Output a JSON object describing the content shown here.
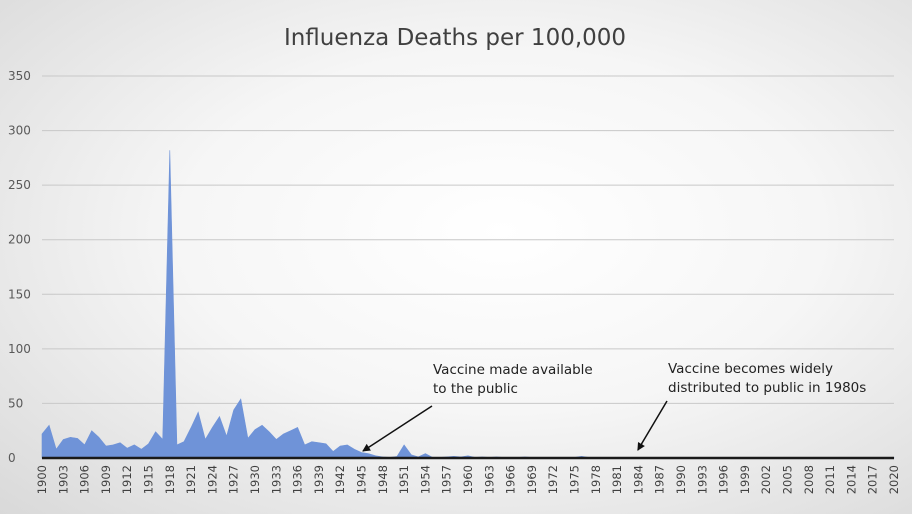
{
  "chart_data": {
    "type": "area",
    "title": "Influenza Deaths per 100,000",
    "xlabel": "",
    "ylabel": "",
    "xlim": [
      1900,
      2020
    ],
    "ylim": [
      0,
      350
    ],
    "y_ticks": [
      0,
      50,
      100,
      150,
      200,
      250,
      300,
      350
    ],
    "x_tick_labels": [
      "1900",
      "1903",
      "1906",
      "1909",
      "1912",
      "1915",
      "1918",
      "1921",
      "1924",
      "1927",
      "1930",
      "1933",
      "1936",
      "1939",
      "1942",
      "1945",
      "1948",
      "1951",
      "1954",
      "1957",
      "1960",
      "1963",
      "1966",
      "1969",
      "1972",
      "1975",
      "1978",
      "1981",
      "1984",
      "1987",
      "1990",
      "1993",
      "1996",
      "1999",
      "2002",
      "2005",
      "2008",
      "2011",
      "2014",
      "2017",
      "2020"
    ],
    "grid": true,
    "series": [
      {
        "name": "Influenza Deaths per 100,000",
        "color": "#6f93d8",
        "x": [
          1900,
          1901,
          1902,
          1903,
          1904,
          1905,
          1906,
          1907,
          1908,
          1909,
          1910,
          1911,
          1912,
          1913,
          1914,
          1915,
          1916,
          1917,
          1918,
          1919,
          1920,
          1921,
          1922,
          1923,
          1924,
          1925,
          1926,
          1927,
          1928,
          1929,
          1930,
          1931,
          1932,
          1933,
          1934,
          1935,
          1936,
          1937,
          1938,
          1939,
          1940,
          1941,
          1942,
          1943,
          1944,
          1945,
          1946,
          1947,
          1948,
          1949,
          1950,
          1951,
          1952,
          1953,
          1954,
          1955,
          1956,
          1957,
          1958,
          1959,
          1960,
          1961,
          1962,
          1963,
          1964,
          1965,
          1966,
          1967,
          1968,
          1969,
          1970,
          1971,
          1972,
          1973,
          1974,
          1975,
          1976,
          1977,
          1978,
          1979,
          1980,
          1981,
          1982,
          1983,
          1984,
          1985,
          1986,
          1987,
          1988,
          1989,
          1990,
          1991,
          1992,
          1993,
          1994,
          1995,
          1996,
          1997,
          1998,
          1999,
          2000,
          2001,
          2002,
          2003,
          2004,
          2005,
          2006,
          2007,
          2008,
          2009,
          2010,
          2011,
          2012,
          2013,
          2014,
          2015,
          2016,
          2017,
          2018,
          2019,
          2020
        ],
        "values": [
          22,
          30,
          8,
          17,
          19,
          18,
          12,
          25,
          19,
          11,
          12,
          14,
          9,
          12,
          8,
          13,
          24,
          17,
          282,
          12,
          15,
          28,
          42,
          17,
          28,
          38,
          20,
          44,
          54,
          18,
          26,
          30,
          24,
          17,
          22,
          25,
          28,
          12,
          15,
          14,
          13,
          6,
          11,
          12,
          8,
          5,
          4,
          2,
          1,
          0.5,
          1.5,
          12,
          3,
          1,
          4,
          0.5,
          0.5,
          1,
          1.5,
          1,
          2,
          0.5,
          1,
          0.5,
          1,
          0.5,
          0.5,
          0.5,
          1,
          0.5,
          0.5,
          0.5,
          0.5,
          0.5,
          0.5,
          0.5,
          1.5,
          0.5,
          0.3,
          0.3,
          0.3,
          0.3,
          0.3,
          0.3,
          0.3,
          0.3,
          0.3,
          0.3,
          0.3,
          0.3,
          0.3,
          0.3,
          0.3,
          0.3,
          0.3,
          0.3,
          0.3,
          0.3,
          0.3,
          0.3,
          0.3,
          0.3,
          0.3,
          0.3,
          0.3,
          0.3,
          0.3,
          0.3,
          0.3,
          0.3,
          0.3,
          0.3,
          0.3,
          0.3,
          0.3,
          0.3,
          0.3,
          0.3,
          0.3,
          0.3,
          0.3
        ]
      }
    ],
    "annotations": [
      {
        "lines": [
          "Vaccine made available",
          "to the public"
        ],
        "points_to_year": 1945
      },
      {
        "lines": [
          "Vaccine becomes widely",
          "distributed to public in 1980s"
        ],
        "points_to_year": 1984
      }
    ]
  }
}
